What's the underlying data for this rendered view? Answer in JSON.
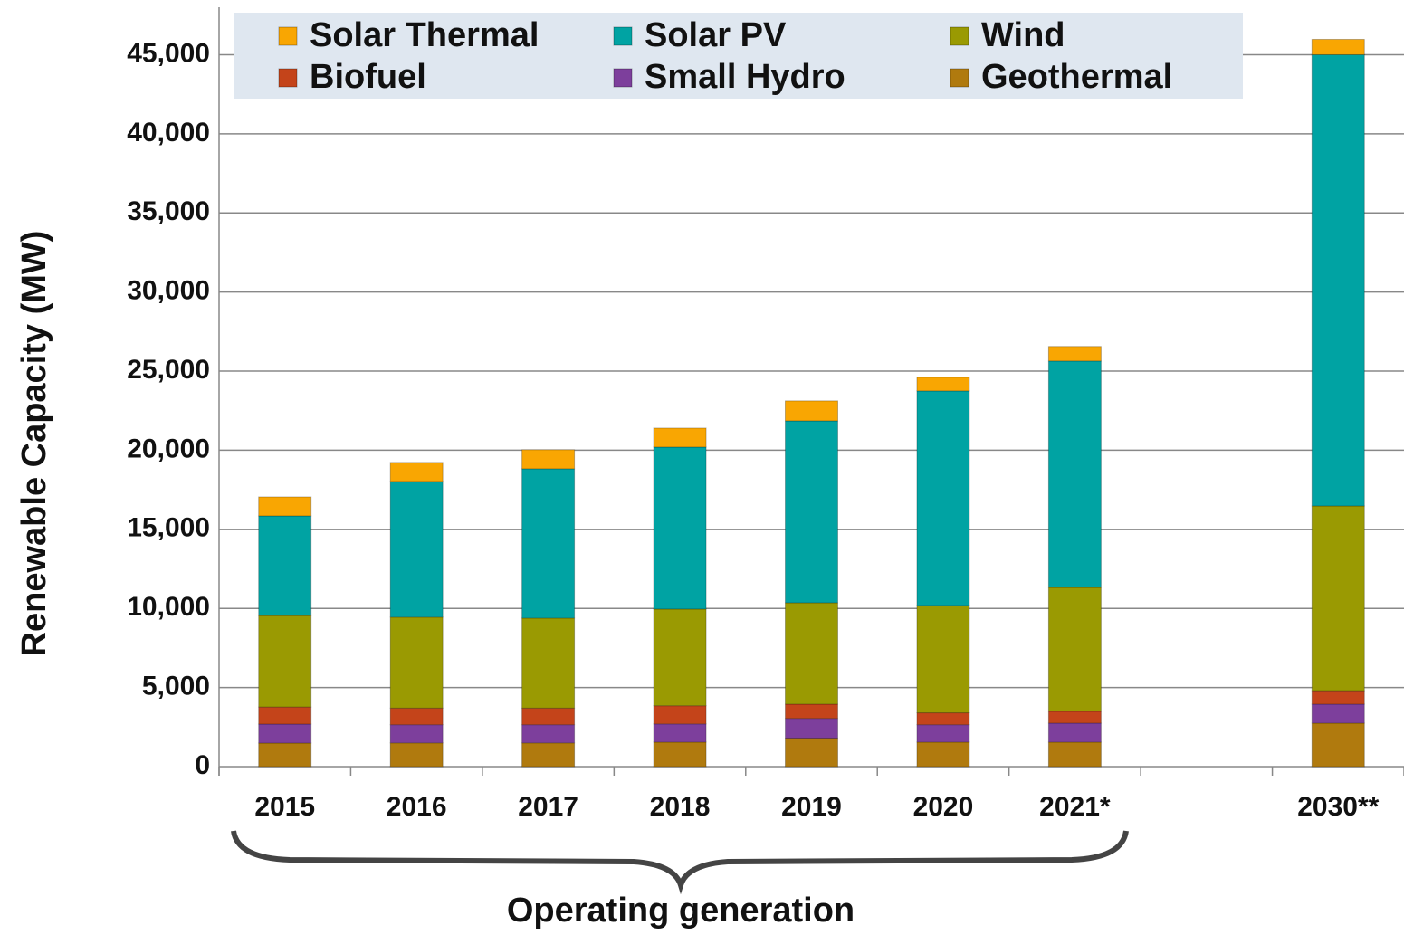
{
  "chart_data": {
    "type": "stacked_bar",
    "y_label": "Renewable Capacity (MW)",
    "annotation": "Operating generation",
    "categories": [
      "2015",
      "2016",
      "2017",
      "2018",
      "2019",
      "2020",
      "2021*",
      null,
      "2030**"
    ],
    "series": [
      {
        "name": "Solar Thermal",
        "color": "#f9a602",
        "values": [
          1200,
          1200,
          1200,
          1200,
          1260,
          860,
          920,
          null,
          970
        ]
      },
      {
        "name": "Solar PV",
        "color": "#00a3a3",
        "values": [
          6300,
          8580,
          9440,
          10240,
          11500,
          13560,
          14310,
          null,
          28520
        ]
      },
      {
        "name": "Wind",
        "color": "#9a9a02",
        "values": [
          5780,
          5750,
          5690,
          6110,
          6410,
          6790,
          7830,
          null,
          11680
        ]
      },
      {
        "name": "Biofuel",
        "color": "#c4441a",
        "values": [
          1080,
          1050,
          1050,
          1150,
          900,
          750,
          750,
          null,
          850
        ]
      },
      {
        "name": "Small Hydro",
        "color": "#7d3f9c",
        "values": [
          1200,
          1150,
          1150,
          1150,
          1250,
          1100,
          1200,
          null,
          1200
        ]
      },
      {
        "name": "Geothermal",
        "color": "#b07a0e",
        "values": [
          1490,
          1500,
          1500,
          1550,
          1800,
          1550,
          1550,
          null,
          2750
        ]
      }
    ],
    "ylim": [
      0,
      48000
    ],
    "yticks": [
      0,
      {
        "value": 5000,
        "label": "5,000"
      },
      {
        "value": 10000,
        "label": "10,000"
      },
      {
        "value": 15000,
        "label": "15,000"
      },
      {
        "value": 20000,
        "label": "20,000"
      },
      {
        "value": 25000,
        "label": "25,000"
      },
      {
        "value": 30000,
        "label": "30,000"
      },
      {
        "value": 35000,
        "label": "35,000"
      },
      {
        "value": 40000,
        "label": "40,000"
      },
      {
        "value": 45000,
        "label": "45,000"
      }
    ],
    "grid": true
  }
}
